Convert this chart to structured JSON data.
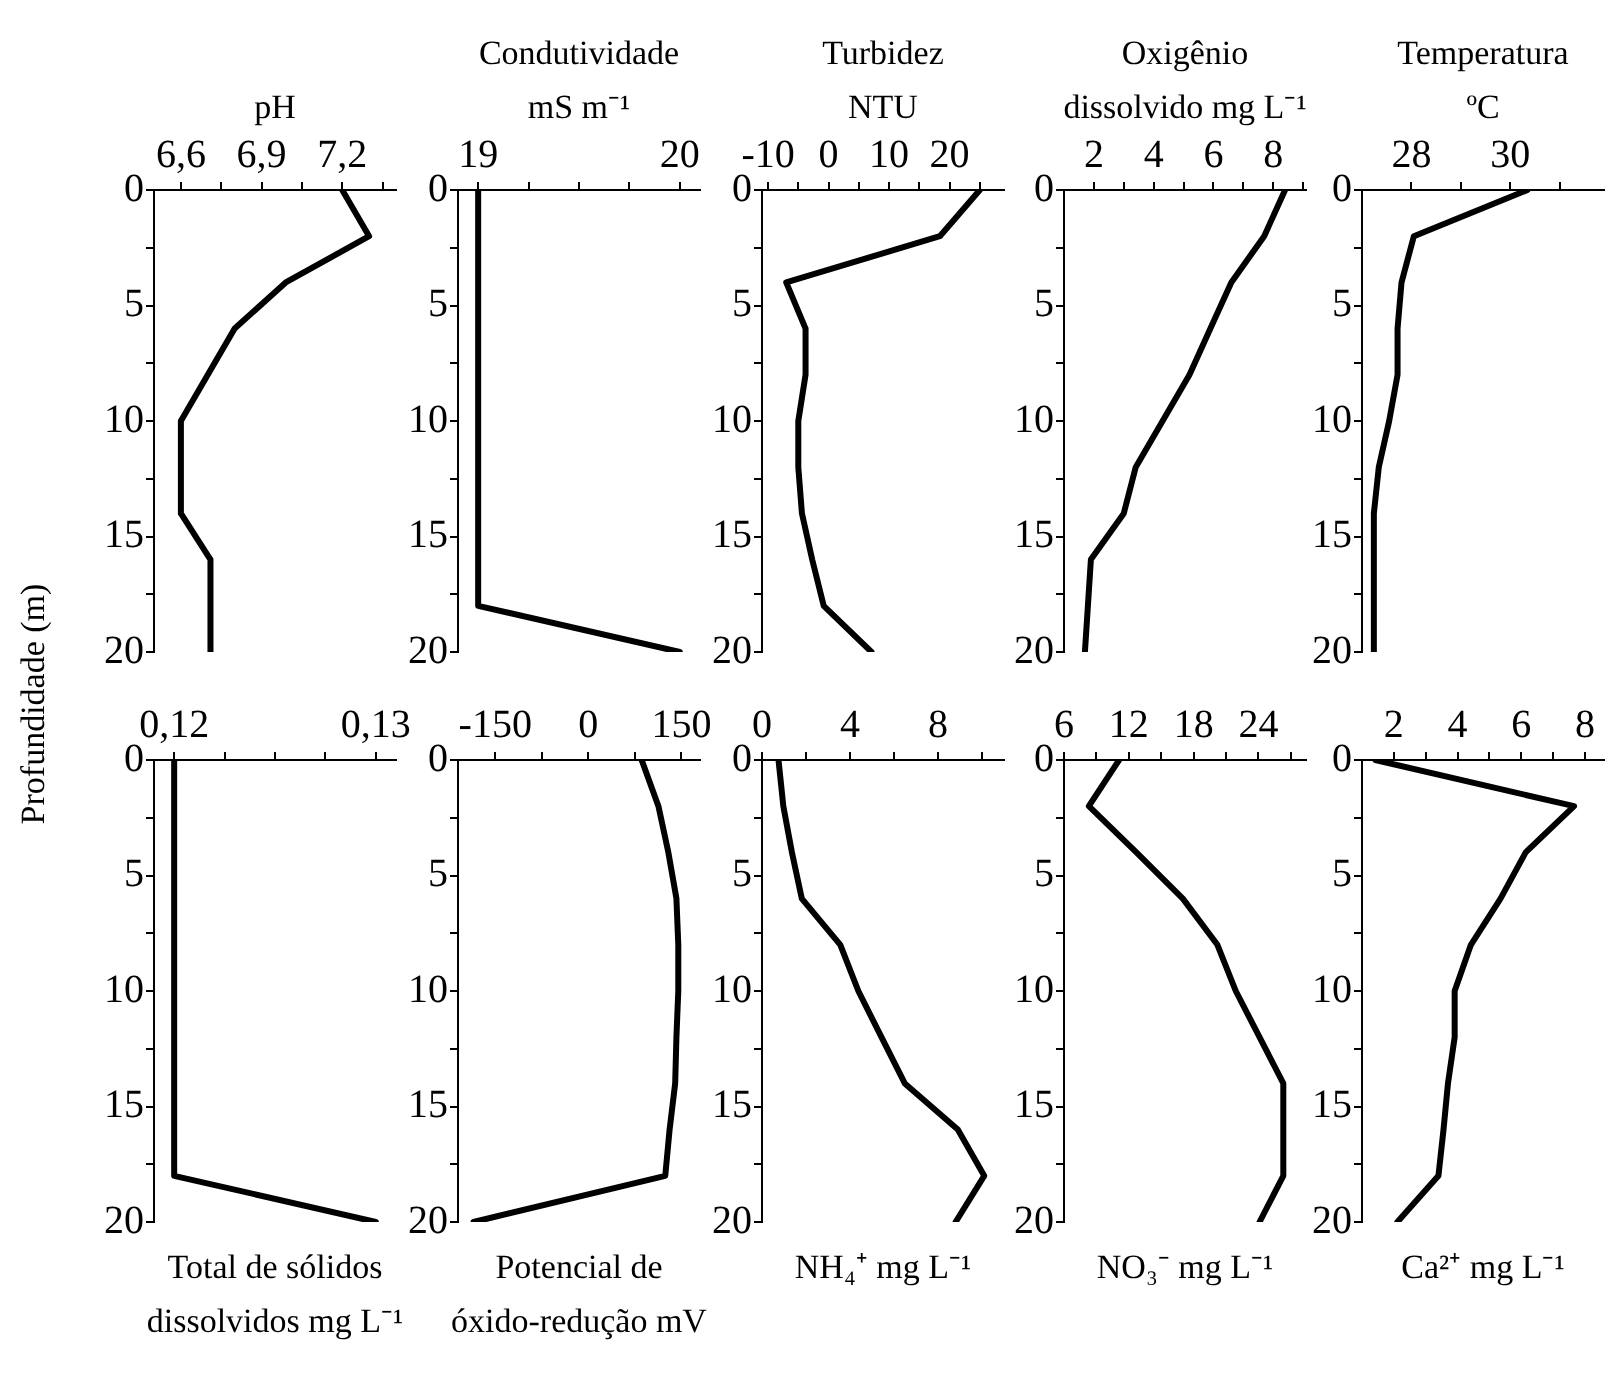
{
  "chart_data": [
    {
      "type": "line",
      "xlabel": "pH",
      "ylabel": "Profundidade (m)",
      "legend": false,
      "grid": false,
      "marker": "none",
      "xlim": [
        6.5,
        7.4
      ],
      "xticks": [
        {
          "value": 6.6,
          "label": "6,6"
        },
        {
          "value": 6.75,
          "label": null
        },
        {
          "value": 6.9,
          "label": "6,9"
        },
        {
          "value": 7.05,
          "label": null
        },
        {
          "value": 7.2,
          "label": "7,2"
        },
        {
          "value": 7.35,
          "label": null
        }
      ],
      "ylim": [
        20,
        0
      ],
      "yticks": [
        0,
        {
          "value": 2.5,
          "label": null
        },
        5,
        {
          "value": 7.5,
          "label": null
        },
        10,
        {
          "value": 12.5,
          "label": null
        },
        15,
        {
          "value": 17.5,
          "label": null
        },
        20
      ],
      "series": [
        {
          "color": "#000000",
          "x": [
            7.2,
            7.3,
            6.99,
            6.8,
            6.7,
            6.6,
            6.6,
            6.6,
            6.71,
            6.71,
            6.71
          ],
          "values": [
            0,
            2,
            4,
            6,
            8,
            10,
            12,
            14,
            16,
            18,
            20
          ]
        }
      ]
    },
    {
      "type": "line",
      "xlabel": "Condutividade\nmS m⁻¹",
      "legend": false,
      "grid": false,
      "marker": "none",
      "xlim": [
        18.9,
        20.1
      ],
      "xticks": [
        19,
        {
          "value": 19.25,
          "label": null
        },
        {
          "value": 19.5,
          "label": null
        },
        {
          "value": 19.75,
          "label": null
        },
        20
      ],
      "ylim": [
        20,
        0
      ],
      "yticks": [
        0,
        {
          "value": 2.5,
          "label": null
        },
        5,
        {
          "value": 7.5,
          "label": null
        },
        10,
        {
          "value": 12.5,
          "label": null
        },
        15,
        {
          "value": 17.5,
          "label": null
        },
        20
      ],
      "series": [
        {
          "color": "#000000",
          "x": [
            19,
            19,
            19,
            19,
            19,
            19,
            19,
            19,
            19,
            19,
            20
          ],
          "values": [
            0,
            2,
            4,
            6,
            8,
            10,
            12,
            14,
            16,
            18,
            20
          ]
        }
      ]
    },
    {
      "type": "line",
      "xlabel": "Turbidez\nNTU",
      "legend": false,
      "grid": false,
      "marker": "none",
      "xlim": [
        -11,
        29
      ],
      "xticks": [
        -10,
        {
          "value": -5,
          "label": null
        },
        0,
        {
          "value": 5,
          "label": null
        },
        10,
        {
          "value": 15,
          "label": null
        },
        20,
        {
          "value": 25,
          "label": null
        }
      ],
      "ylim": [
        20,
        0
      ],
      "yticks": [
        0,
        {
          "value": 2.5,
          "label": null
        },
        5,
        {
          "value": 7.5,
          "label": null
        },
        10,
        {
          "value": 12.5,
          "label": null
        },
        15,
        {
          "value": 17.5,
          "label": null
        },
        20
      ],
      "series": [
        {
          "color": "#000000",
          "x": [
            25,
            18.4,
            -7,
            -3.8,
            -3.8,
            -5,
            -5,
            -4.4,
            -2.7,
            -0.8,
            7.1
          ],
          "values": [
            0,
            2,
            4,
            6,
            8,
            10,
            12,
            14,
            16,
            18,
            20
          ]
        }
      ]
    },
    {
      "type": "line",
      "xlabel": "Oxigênio\ndissolvido mg L⁻¹",
      "legend": false,
      "grid": false,
      "marker": "none",
      "xlim": [
        1,
        9.1
      ],
      "xticks": [
        2,
        {
          "value": 3,
          "label": null
        },
        4,
        {
          "value": 5,
          "label": null
        },
        6,
        {
          "value": 7,
          "label": null
        },
        8,
        {
          "value": 9,
          "label": null
        }
      ],
      "ylim": [
        20,
        0
      ],
      "yticks": [
        0,
        {
          "value": 2.5,
          "label": null
        },
        5,
        {
          "value": 7.5,
          "label": null
        },
        10,
        {
          "value": 12.5,
          "label": null
        },
        15,
        {
          "value": 17.5,
          "label": null
        },
        20
      ],
      "series": [
        {
          "color": "#000000",
          "x": [
            8.4,
            7.7,
            6.6,
            5.9,
            5.2,
            4.3,
            3.4,
            3,
            1.9,
            1.8,
            1.7
          ],
          "values": [
            0,
            2,
            4,
            6,
            8,
            10,
            12,
            14,
            16,
            18,
            20
          ]
        }
      ]
    },
    {
      "type": "line",
      "xlabel": "Temperatura\nºC",
      "legend": false,
      "grid": false,
      "marker": "none",
      "xlim": [
        27,
        31.9
      ],
      "xticks": [
        28,
        {
          "value": 29,
          "label": null
        },
        30,
        {
          "value": 31,
          "label": null
        }
      ],
      "ylim": [
        20,
        0
      ],
      "yticks": [
        0,
        {
          "value": 2.5,
          "label": null
        },
        5,
        {
          "value": 7.5,
          "label": null
        },
        10,
        {
          "value": 12.5,
          "label": null
        },
        15,
        {
          "value": 17.5,
          "label": null
        },
        20
      ],
      "series": [
        {
          "color": "#000000",
          "x": [
            30.35,
            28.05,
            27.8,
            27.72,
            27.72,
            27.55,
            27.34,
            27.24,
            27.24,
            27.24,
            27.24
          ],
          "values": [
            0,
            2,
            4,
            6,
            8,
            10,
            12,
            14,
            16,
            18,
            20
          ]
        }
      ]
    },
    {
      "type": "line",
      "xlabel": "Total de sólidos\ndissolvidos mg L⁻¹",
      "legend": false,
      "grid": false,
      "marker": "none",
      "xlim": [
        0.119,
        0.131
      ],
      "xticks": [
        {
          "value": 0.12,
          "label": "0,12"
        },
        {
          "value": 0.1225,
          "label": null
        },
        {
          "value": 0.125,
          "label": null
        },
        {
          "value": 0.1275,
          "label": null
        },
        {
          "value": 0.13,
          "label": "0,13"
        }
      ],
      "ylim": [
        20,
        0
      ],
      "yticks": [
        0,
        {
          "value": 2.5,
          "label": null
        },
        5,
        {
          "value": 7.5,
          "label": null
        },
        10,
        {
          "value": 12.5,
          "label": null
        },
        15,
        {
          "value": 17.5,
          "label": null
        },
        20
      ],
      "series": [
        {
          "color": "#000000",
          "x": [
            0.12,
            0.12,
            0.12,
            0.12,
            0.12,
            0.12,
            0.12,
            0.12,
            0.12,
            0.12,
            0.13
          ],
          "values": [
            0,
            2,
            4,
            6,
            8,
            10,
            12,
            14,
            16,
            18,
            20
          ]
        }
      ]
    },
    {
      "type": "line",
      "xlabel": "Potencial de\nóxido-redução mV",
      "legend": false,
      "grid": false,
      "marker": "none",
      "xlim": [
        -210,
        180
      ],
      "xticks": [
        -150,
        {
          "value": -75,
          "label": null
        },
        0,
        {
          "value": 75,
          "label": null
        },
        150
      ],
      "ylim": [
        20,
        0
      ],
      "yticks": [
        0,
        {
          "value": 2.5,
          "label": null
        },
        5,
        {
          "value": 7.5,
          "label": null
        },
        10,
        {
          "value": 12.5,
          "label": null
        },
        15,
        {
          "value": 17.5,
          "label": null
        },
        20
      ],
      "series": [
        {
          "color": "#000000",
          "x": [
            86,
            113,
            129,
            142,
            145,
            145,
            142,
            140,
            131,
            124,
            -185
          ],
          "values": [
            0,
            2,
            4,
            6,
            8,
            10,
            12,
            14,
            16,
            18,
            20
          ]
        }
      ]
    },
    {
      "type": "line",
      "xlabel": "NH₄⁺ mg L⁻¹",
      "legend": false,
      "grid": false,
      "marker": "none",
      "xlim": [
        0,
        11
      ],
      "xticks": [
        0,
        {
          "value": 2,
          "label": null
        },
        4,
        {
          "value": 6,
          "label": null
        },
        8,
        {
          "value": 10,
          "label": null
        }
      ],
      "ylim": [
        20,
        0
      ],
      "yticks": [
        0,
        {
          "value": 2.5,
          "label": null
        },
        5,
        {
          "value": 7.5,
          "label": null
        },
        10,
        {
          "value": 12.5,
          "label": null
        },
        15,
        {
          "value": 17.5,
          "label": null
        },
        20
      ],
      "series": [
        {
          "color": "#000000",
          "x": [
            0.75,
            0.97,
            1.36,
            1.81,
            3.56,
            4.38,
            5.43,
            6.49,
            8.9,
            10.1,
            8.8
          ],
          "values": [
            0,
            2,
            4,
            6,
            8,
            10,
            12,
            14,
            16,
            18,
            20
          ]
        }
      ]
    },
    {
      "type": "line",
      "xlabel": "NO₃⁻ mg L⁻¹",
      "legend": false,
      "grid": false,
      "marker": "none",
      "xlim": [
        6,
        28.4
      ],
      "xticks": [
        6,
        {
          "value": 9,
          "label": null
        },
        12,
        {
          "value": 15,
          "label": null
        },
        18,
        {
          "value": 21,
          "label": null
        },
        24,
        {
          "value": 27,
          "label": null
        }
      ],
      "ylim": [
        20,
        0
      ],
      "yticks": [
        0,
        {
          "value": 2.5,
          "label": null
        },
        5,
        {
          "value": 7.5,
          "label": null
        },
        10,
        {
          "value": 12.5,
          "label": null
        },
        15,
        {
          "value": 17.5,
          "label": null
        },
        20
      ],
      "series": [
        {
          "color": "#000000",
          "x": [
            11.1,
            8.3,
            12.7,
            17,
            20.2,
            21.9,
            24.1,
            26.3,
            26.3,
            24.1
          ],
          "values": [
            0,
            2,
            4,
            6,
            8,
            10,
            12,
            14,
            18,
            20
          ]
        }
      ]
    },
    {
      "type": "line",
      "xlabel": "Ca²⁺ mg L⁻¹",
      "legend": false,
      "grid": false,
      "marker": "none",
      "xlim": [
        1,
        8.6
      ],
      "xticks": [
        2,
        {
          "value": 3,
          "label": null
        },
        4,
        {
          "value": 5,
          "label": null
        },
        6,
        {
          "value": 7,
          "label": null
        },
        8
      ],
      "ylim": [
        20,
        0
      ],
      "yticks": [
        0,
        {
          "value": 2.5,
          "label": null
        },
        5,
        {
          "value": 7.5,
          "label": null
        },
        10,
        {
          "value": 12.5,
          "label": null
        },
        15,
        {
          "value": 17.5,
          "label": null
        },
        20
      ],
      "series": [
        {
          "color": "#000000",
          "x": [
            1.42,
            7.66,
            6.14,
            5.35,
            4.42,
            3.91,
            3.91,
            3.7,
            3.56,
            3.4,
            2.11
          ],
          "values": [
            0,
            2,
            4,
            6,
            8,
            10,
            12,
            14,
            16,
            18,
            20
          ]
        }
      ]
    }
  ]
}
